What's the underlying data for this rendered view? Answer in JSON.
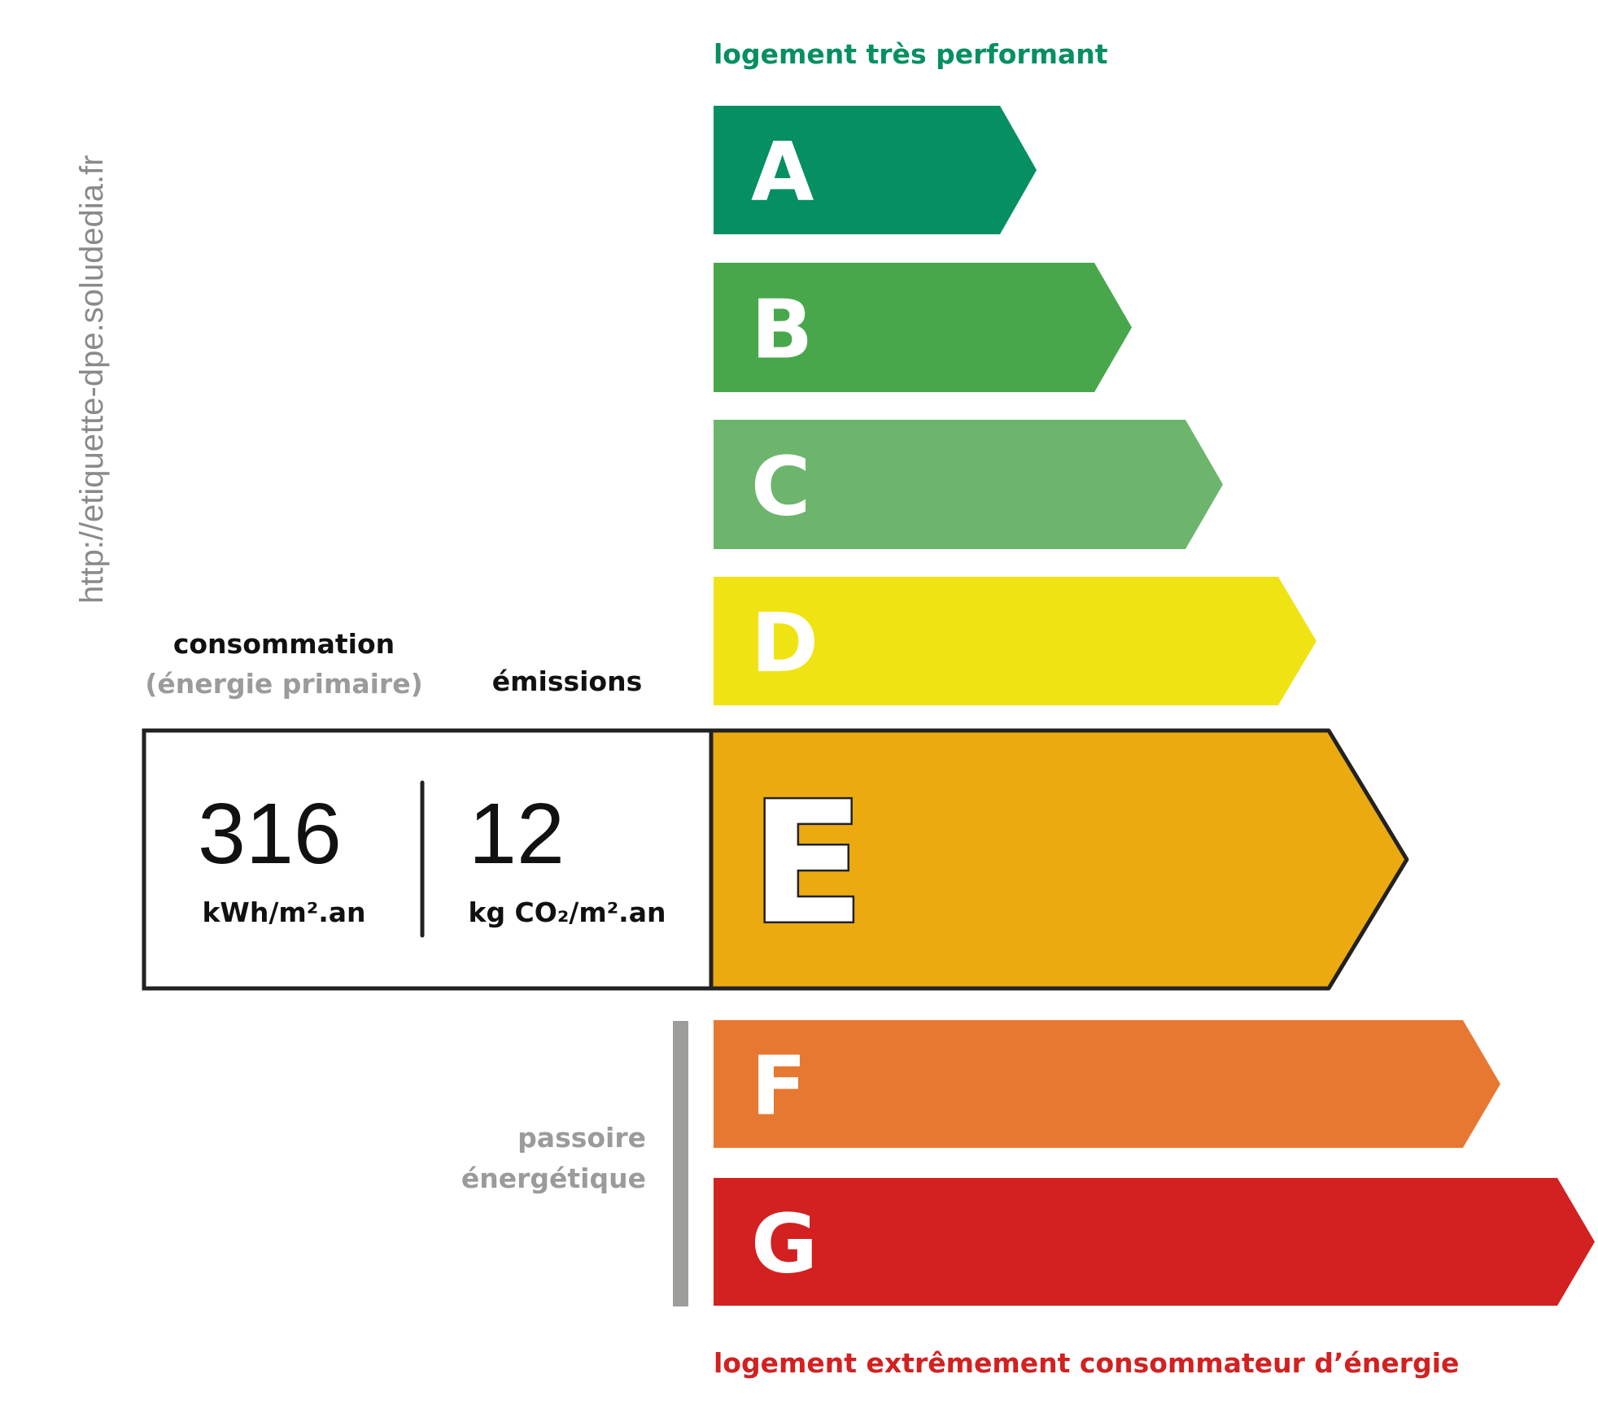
{
  "url_watermark": "http://etiquette-dpe.soludedia.fr",
  "top_label": "logement très performant",
  "bottom_label": "logement extrêmement consommateur d’énergie",
  "consumption": {
    "title": "consommation",
    "subtitle": "(énergie primaire)",
    "value": "316",
    "unit": "kWh/m².an"
  },
  "emissions": {
    "title": "émissions",
    "value": "12",
    "unit": "kg CO₂/m².an"
  },
  "passoire": {
    "line1": "passoire",
    "line2": "énergétique"
  },
  "selected_class": "E",
  "classes": [
    {
      "letter": "A",
      "color": "#058f62"
    },
    {
      "letter": "B",
      "color": "#48a74b"
    },
    {
      "letter": "C",
      "color": "#6db56d"
    },
    {
      "letter": "D",
      "color": "#f0e314"
    },
    {
      "letter": "E",
      "color": "#ebab10"
    },
    {
      "letter": "F",
      "color": "#e77832"
    },
    {
      "letter": "G",
      "color": "#d32020"
    }
  ],
  "colors": {
    "top_label": "#058f62",
    "bottom_label": "#d32020",
    "muted": "#9b9b9b"
  }
}
